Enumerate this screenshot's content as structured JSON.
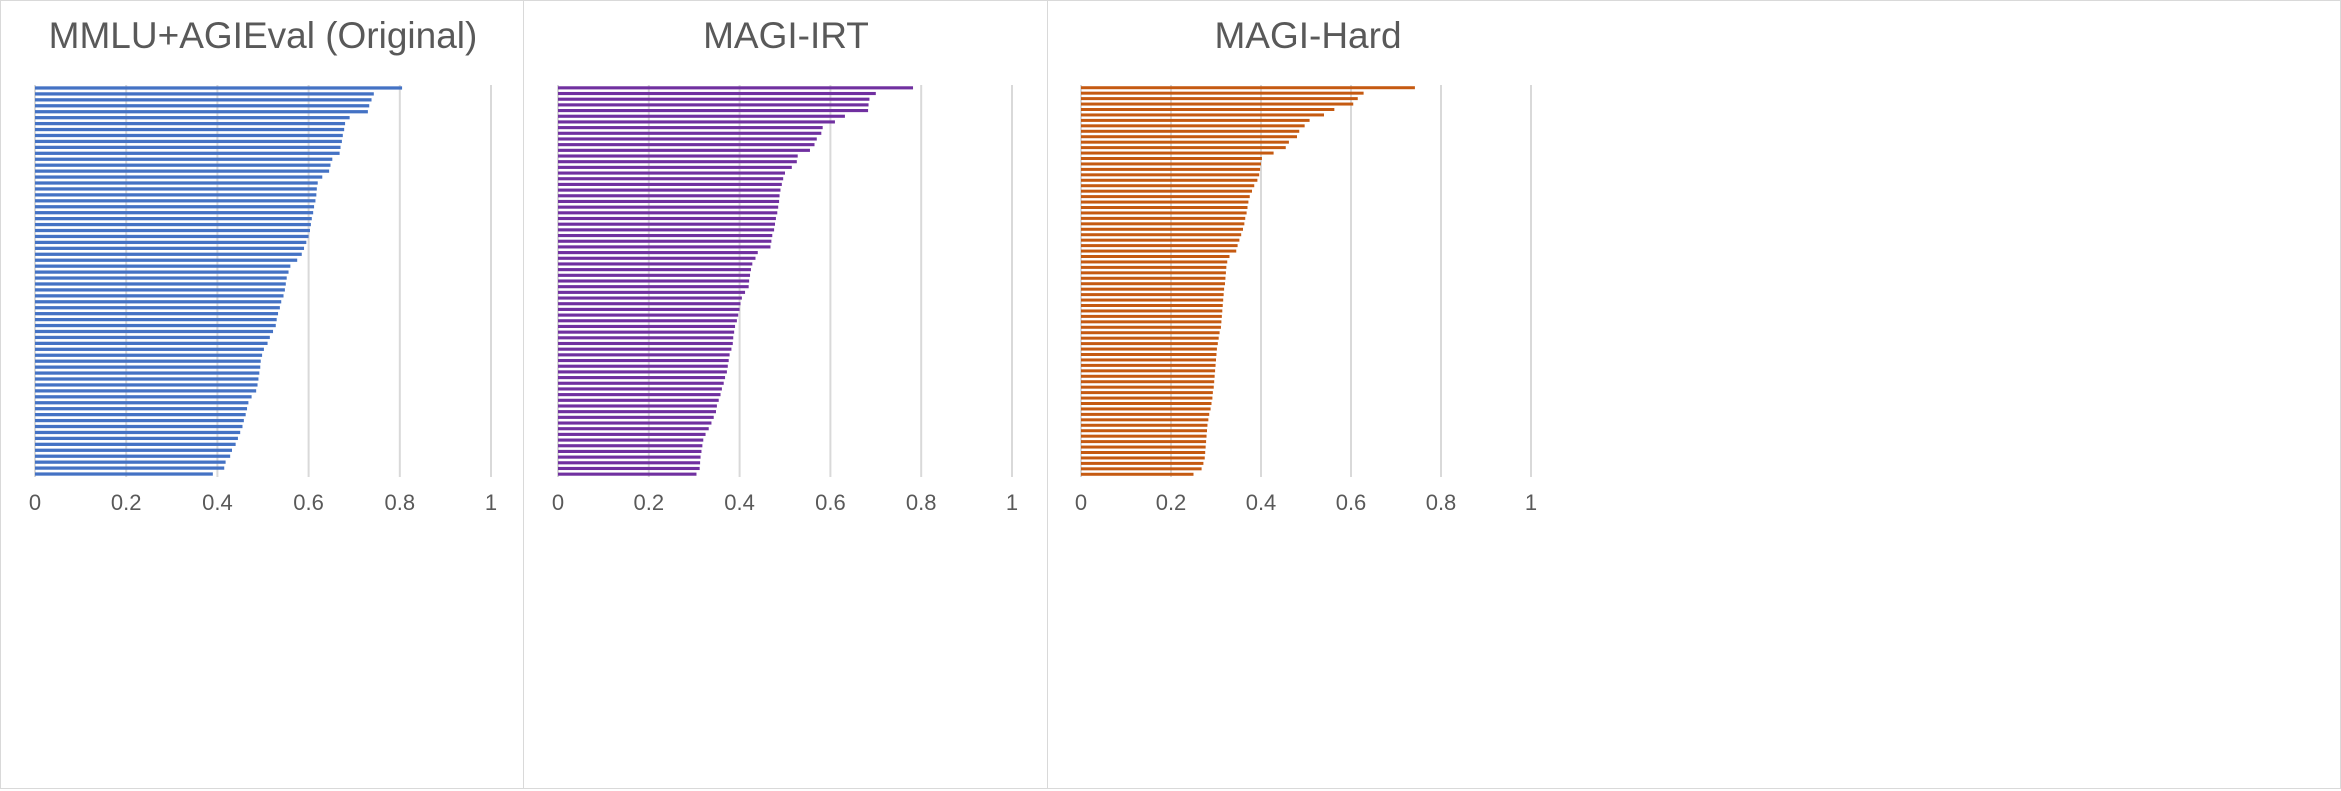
{
  "chart_data": [
    {
      "type": "bar",
      "orientation": "horizontal",
      "title": "MMLU+AGIEval (Original)",
      "color": "#4472c4",
      "xlim": [
        0,
        1
      ],
      "xticks": [
        "0",
        "0.2",
        "0.4",
        "0.6",
        "0.8",
        "1"
      ],
      "grid": true,
      "values": [
        0.805,
        0.743,
        0.738,
        0.733,
        0.73,
        0.69,
        0.68,
        0.678,
        0.675,
        0.673,
        0.67,
        0.668,
        0.652,
        0.648,
        0.645,
        0.63,
        0.62,
        0.618,
        0.617,
        0.615,
        0.612,
        0.61,
        0.607,
        0.605,
        0.603,
        0.6,
        0.595,
        0.59,
        0.585,
        0.575,
        0.56,
        0.556,
        0.552,
        0.55,
        0.548,
        0.545,
        0.54,
        0.537,
        0.533,
        0.53,
        0.528,
        0.522,
        0.515,
        0.51,
        0.502,
        0.498,
        0.495,
        0.494,
        0.492,
        0.49,
        0.488,
        0.485,
        0.475,
        0.468,
        0.465,
        0.462,
        0.458,
        0.455,
        0.45,
        0.445,
        0.44,
        0.432,
        0.428,
        0.418,
        0.415,
        0.39
      ]
    },
    {
      "type": "bar",
      "orientation": "horizontal",
      "title": "MAGI-IRT",
      "color": "#7030a0",
      "xlim": [
        0,
        1
      ],
      "xticks": [
        "0",
        "0.2",
        "0.4",
        "0.6",
        "0.8",
        "1"
      ],
      "grid": true,
      "values": [
        0.782,
        0.7,
        0.686,
        0.684,
        0.683,
        0.632,
        0.61,
        0.583,
        0.58,
        0.57,
        0.565,
        0.555,
        0.528,
        0.526,
        0.515,
        0.5,
        0.496,
        0.493,
        0.49,
        0.488,
        0.487,
        0.485,
        0.483,
        0.48,
        0.478,
        0.476,
        0.472,
        0.47,
        0.468,
        0.44,
        0.435,
        0.428,
        0.425,
        0.423,
        0.421,
        0.42,
        0.412,
        0.405,
        0.402,
        0.4,
        0.397,
        0.394,
        0.39,
        0.388,
        0.386,
        0.385,
        0.382,
        0.378,
        0.376,
        0.374,
        0.372,
        0.368,
        0.365,
        0.361,
        0.358,
        0.354,
        0.35,
        0.348,
        0.343,
        0.338,
        0.332,
        0.325,
        0.32,
        0.318,
        0.316,
        0.314,
        0.313,
        0.312,
        0.305
      ]
    },
    {
      "type": "bar",
      "orientation": "horizontal",
      "title": "MAGI-Hard",
      "color": "#c55a11",
      "xlim": [
        0,
        1
      ],
      "xticks": [
        "0",
        "0.2",
        "0.4",
        "0.6",
        "0.8",
        "1"
      ],
      "grid": true,
      "values": [
        0.742,
        0.628,
        0.615,
        0.605,
        0.563,
        0.54,
        0.508,
        0.497,
        0.485,
        0.48,
        0.462,
        0.455,
        0.428,
        0.402,
        0.4,
        0.398,
        0.396,
        0.392,
        0.385,
        0.38,
        0.375,
        0.372,
        0.37,
        0.368,
        0.365,
        0.363,
        0.36,
        0.356,
        0.352,
        0.348,
        0.345,
        0.33,
        0.325,
        0.323,
        0.322,
        0.321,
        0.32,
        0.318,
        0.317,
        0.316,
        0.315,
        0.314,
        0.313,
        0.312,
        0.311,
        0.308,
        0.306,
        0.304,
        0.302,
        0.301,
        0.3,
        0.299,
        0.298,
        0.297,
        0.296,
        0.295,
        0.293,
        0.292,
        0.29,
        0.288,
        0.285,
        0.283,
        0.281,
        0.28,
        0.279,
        0.278,
        0.277,
        0.276,
        0.275,
        0.272,
        0.268,
        0.25
      ]
    }
  ]
}
